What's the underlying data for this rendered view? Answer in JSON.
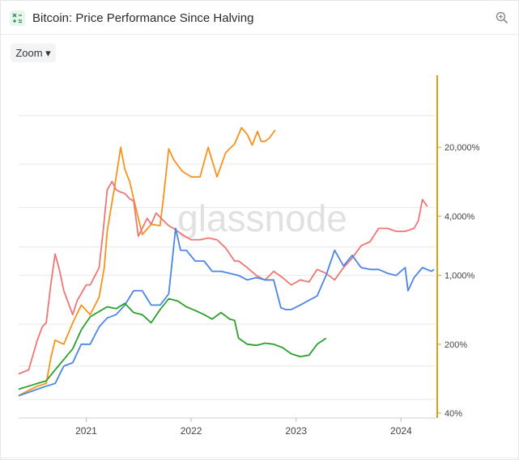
{
  "header": {
    "title": "Bitcoin: Price Performance Since Halving"
  },
  "toolbar": {
    "zoom_label": "Zoom ▾"
  },
  "watermark": "glassnode",
  "icons": {
    "calculator": "calculator-icon",
    "zoom": "zoom-in-icon"
  },
  "colors": {
    "axis": "#e59a1a",
    "grid": "#e8e8e8",
    "watermark": "#dcdcdc"
  },
  "chart_data": {
    "type": "line",
    "title": "Bitcoin: Price Performance Since Halving",
    "xlabel": "",
    "ylabel": "",
    "ylog": true,
    "ylim": [
      40,
      100000
    ],
    "xlim": [
      "2020-05-11",
      "2024-04-30"
    ],
    "grid": true,
    "x_ticks": [
      "2021",
      "2022",
      "2023",
      "2024"
    ],
    "y_ticks": [
      {
        "value": 40,
        "label": "40%"
      },
      {
        "value": 200,
        "label": "200%"
      },
      {
        "value": 1000,
        "label": "1,000%"
      },
      {
        "value": 4000,
        "label": "4,000%"
      },
      {
        "value": 20000,
        "label": "20,000%"
      }
    ],
    "series": [
      {
        "color": "#f7931a",
        "x": [
          "2020-05-11",
          "2020-06-15",
          "2020-07-15",
          "2020-08-15",
          "2020-09-01",
          "2020-09-15",
          "2020-10-15",
          "2020-11-15",
          "2020-12-15",
          "2021-01-15",
          "2021-02-15",
          "2021-03-05",
          "2021-03-15",
          "2021-04-01",
          "2021-04-10",
          "2021-05-01",
          "2021-05-15",
          "2021-06-01",
          "2021-06-15",
          "2021-07-15",
          "2021-08-15",
          "2021-09-15",
          "2021-09-25",
          "2021-10-05",
          "2021-10-15",
          "2021-11-01",
          "2021-12-01",
          "2022-01-01",
          "2022-02-01",
          "2022-03-01",
          "2022-04-01",
          "2022-05-01",
          "2022-06-01",
          "2022-06-25",
          "2022-07-15",
          "2022-08-01",
          "2022-08-20",
          "2022-09-01",
          "2022-09-15",
          "2022-10-01",
          "2022-10-20"
        ],
        "values": [
          60,
          68,
          75,
          80,
          150,
          220,
          200,
          330,
          500,
          400,
          600,
          1200,
          2800,
          5600,
          8000,
          20000,
          12000,
          9000,
          6000,
          2600,
          3300,
          3200,
          5600,
          10200,
          19300,
          15000,
          11400,
          10000,
          10000,
          20000,
          10000,
          17600,
          21600,
          31600,
          27000,
          21000,
          29000,
          23000,
          23000,
          25000,
          30000
        ]
      },
      {
        "color": "#f07575",
        "x": [
          "2020-05-11",
          "2020-06-15",
          "2020-07-15",
          "2020-08-01",
          "2020-08-15",
          "2020-09-01",
          "2020-09-15",
          "2020-10-01",
          "2020-10-15",
          "2020-11-15",
          "2020-12-01",
          "2021-01-01",
          "2021-01-15",
          "2021-02-01",
          "2021-02-15",
          "2021-03-01",
          "2021-03-15",
          "2021-04-01",
          "2021-04-15",
          "2021-05-01",
          "2021-05-15",
          "2021-06-01",
          "2021-06-15",
          "2021-07-01",
          "2021-08-01",
          "2021-08-15",
          "2021-09-01",
          "2021-10-01",
          "2021-10-15",
          "2021-11-01",
          "2021-12-01",
          "2022-01-01",
          "2022-02-01",
          "2022-03-01",
          "2022-04-01",
          "2022-05-01",
          "2022-06-01",
          "2022-06-15",
          "2022-07-15",
          "2022-08-15",
          "2022-09-15",
          "2022-10-15",
          "2022-11-15",
          "2022-12-15",
          "2023-01-15",
          "2023-02-15",
          "2023-03-15",
          "2023-04-15",
          "2023-05-15",
          "2023-06-15",
          "2023-07-15",
          "2023-08-15",
          "2023-09-15",
          "2023-10-15",
          "2023-11-15",
          "2023-12-15",
          "2024-01-15",
          "2024-02-15",
          "2024-03-01",
          "2024-03-15",
          "2024-04-01"
        ],
        "values": [
          100,
          110,
          220,
          300,
          330,
          850,
          1650,
          1100,
          700,
          400,
          560,
          800,
          800,
          1000,
          1200,
          2800,
          7400,
          9000,
          7400,
          7000,
          6800,
          6000,
          5700,
          2500,
          3800,
          3300,
          4300,
          3500,
          3200,
          3000,
          2600,
          2300,
          2300,
          2400,
          2300,
          1900,
          1400,
          1400,
          1200,
          1000,
          900,
          1100,
          950,
          800,
          900,
          860,
          1150,
          1050,
          900,
          1200,
          1500,
          2000,
          2200,
          3000,
          3000,
          2800,
          2800,
          3000,
          3600,
          5900,
          5000
        ]
      },
      {
        "color": "#4a86e8",
        "x": [
          "2020-05-11",
          "2020-06-15",
          "2020-07-15",
          "2020-08-15",
          "2020-09-15",
          "2020-10-15",
          "2020-11-15",
          "2020-12-15",
          "2021-01-15",
          "2021-02-15",
          "2021-03-15",
          "2021-04-15",
          "2021-05-15",
          "2021-06-15",
          "2021-07-15",
          "2021-08-15",
          "2021-09-15",
          "2021-10-15",
          "2021-11-08",
          "2021-11-25",
          "2021-12-15",
          "2022-01-15",
          "2022-02-15",
          "2022-03-15",
          "2022-04-15",
          "2022-05-15",
          "2022-06-15",
          "2022-07-15",
          "2022-08-15",
          "2022-09-15",
          "2022-10-15",
          "2022-11-09",
          "2022-11-25",
          "2022-12-15",
          "2023-01-15",
          "2023-02-15",
          "2023-03-15",
          "2023-04-15",
          "2023-05-15",
          "2023-06-15",
          "2023-07-15",
          "2023-08-15",
          "2023-09-15",
          "2023-10-15",
          "2023-11-15",
          "2023-12-15",
          "2024-01-15",
          "2024-01-25",
          "2024-02-15",
          "2024-03-15",
          "2024-04-15",
          "2024-04-25"
        ],
        "values": [
          60,
          65,
          70,
          75,
          80,
          120,
          130,
          200,
          200,
          300,
          370,
          400,
          500,
          700,
          700,
          500,
          500,
          650,
          3000,
          1800,
          1800,
          1400,
          1400,
          1100,
          1100,
          1050,
          1000,
          900,
          950,
          900,
          900,
          470,
          450,
          450,
          500,
          560,
          620,
          1000,
          1800,
          1250,
          1600,
          1200,
          1150,
          1150,
          1050,
          1000,
          1200,
          700,
          950,
          1200,
          1100,
          1150
        ]
      },
      {
        "color": "#2ca02c",
        "x": [
          "2020-05-11",
          "2020-06-15",
          "2020-07-15",
          "2020-08-15",
          "2020-09-15",
          "2020-10-15",
          "2020-11-15",
          "2020-12-15",
          "2021-01-15",
          "2021-02-15",
          "2021-03-15",
          "2021-04-15",
          "2021-05-15",
          "2021-06-15",
          "2021-07-15",
          "2021-08-15",
          "2021-09-15",
          "2021-10-15",
          "2021-11-15",
          "2021-12-15",
          "2022-01-15",
          "2022-02-15",
          "2022-03-15",
          "2022-04-15",
          "2022-05-15",
          "2022-06-01",
          "2022-06-15",
          "2022-07-15",
          "2022-08-15",
          "2022-09-15",
          "2022-10-15",
          "2022-11-15",
          "2022-12-15",
          "2023-01-15",
          "2023-02-15",
          "2023-03-15",
          "2023-04-15"
        ],
        "values": [
          70,
          75,
          80,
          85,
          110,
          140,
          180,
          280,
          380,
          430,
          480,
          460,
          520,
          420,
          400,
          330,
          450,
          580,
          550,
          480,
          440,
          400,
          360,
          420,
          360,
          350,
          230,
          200,
          195,
          205,
          200,
          185,
          160,
          150,
          155,
          200,
          230
        ]
      }
    ]
  }
}
